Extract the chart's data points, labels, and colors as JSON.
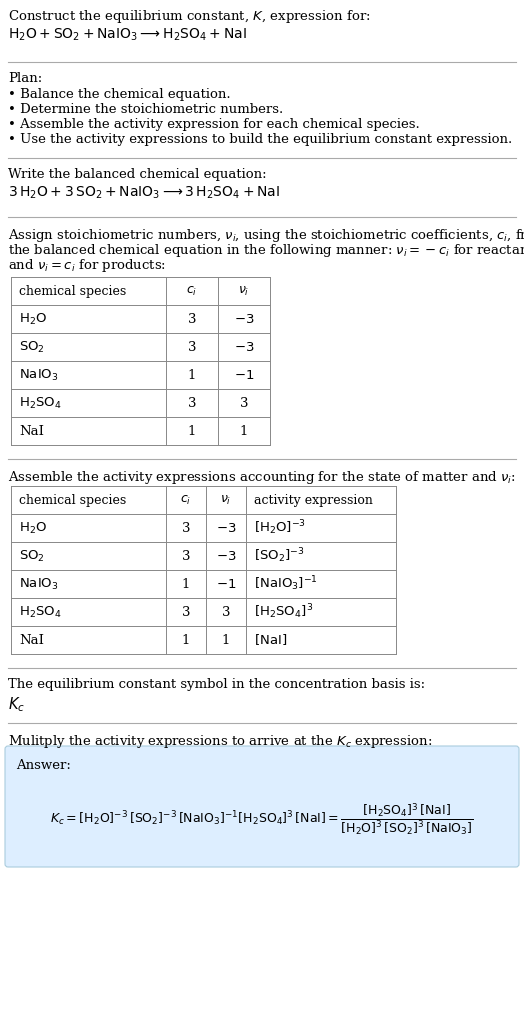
{
  "title_line1": "Construct the equilibrium constant, $K$, expression for:",
  "title_line2": "$\\mathrm{H_2O + SO_2 + NaIO_3 \\longrightarrow H_2SO_4 + NaI}$",
  "plan_header": "Plan:",
  "plan_items": [
    "\\textbf{\\bullet} Balance the chemical equation.",
    "\\textbf{\\bullet} Determine the stoichiometric numbers.",
    "\\textbf{\\bullet} Assemble the activity expression for each chemical species.",
    "\\textbf{\\bullet} Use the activity expressions to build the equilibrium constant expression."
  ],
  "balanced_header": "Write the balanced chemical equation:",
  "balanced_eq": "$\\mathrm{3\\,H_2O + 3\\,SO_2 + NaIO_3 \\longrightarrow 3\\,H_2SO_4 + NaI}$",
  "stoich_text": [
    "Assign stoichiometric numbers, $\\nu_i$, using the stoichiometric coefficients, $c_i$, from",
    "the balanced chemical equation in the following manner: $\\nu_i = -c_i$ for reactants",
    "and $\\nu_i = c_i$ for products:"
  ],
  "table1_headers": [
    "chemical species",
    "$c_i$",
    "$\\nu_i$"
  ],
  "table1_rows": [
    [
      "$\\mathrm{H_2O}$",
      "3",
      "$-3$"
    ],
    [
      "$\\mathrm{SO_2}$",
      "3",
      "$-3$"
    ],
    [
      "$\\mathrm{NaIO_3}$",
      "1",
      "$-1$"
    ],
    [
      "$\\mathrm{H_2SO_4}$",
      "3",
      "3"
    ],
    [
      "NaI",
      "1",
      "1"
    ]
  ],
  "activity_header": "Assemble the activity expressions accounting for the state of matter and $\\nu_i$:",
  "table2_headers": [
    "chemical species",
    "$c_i$",
    "$\\nu_i$",
    "activity expression"
  ],
  "table2_rows": [
    [
      "$\\mathrm{H_2O}$",
      "3",
      "$-3$",
      "$[\\mathrm{H_2O}]^{-3}$"
    ],
    [
      "$\\mathrm{SO_2}$",
      "3",
      "$-3$",
      "$[\\mathrm{SO_2}]^{-3}$"
    ],
    [
      "$\\mathrm{NaIO_3}$",
      "1",
      "$-1$",
      "$[\\mathrm{NaIO_3}]^{-1}$"
    ],
    [
      "$\\mathrm{H_2SO_4}$",
      "3",
      "3",
      "$[\\mathrm{H_2SO_4}]^{3}$"
    ],
    [
      "NaI",
      "1",
      "1",
      "$[\\mathrm{NaI}]$"
    ]
  ],
  "kc_header": "The equilibrium constant symbol in the concentration basis is:",
  "kc_symbol": "$K_c$",
  "multiply_header": "Mulitply the activity expressions to arrive at the $K_c$ expression:",
  "answer_label": "Answer:",
  "bg_color": "#ffffff",
  "answer_bg": "#ddeeff",
  "separator_color": "#999999",
  "text_color": "#000000",
  "font_size": 9.5
}
